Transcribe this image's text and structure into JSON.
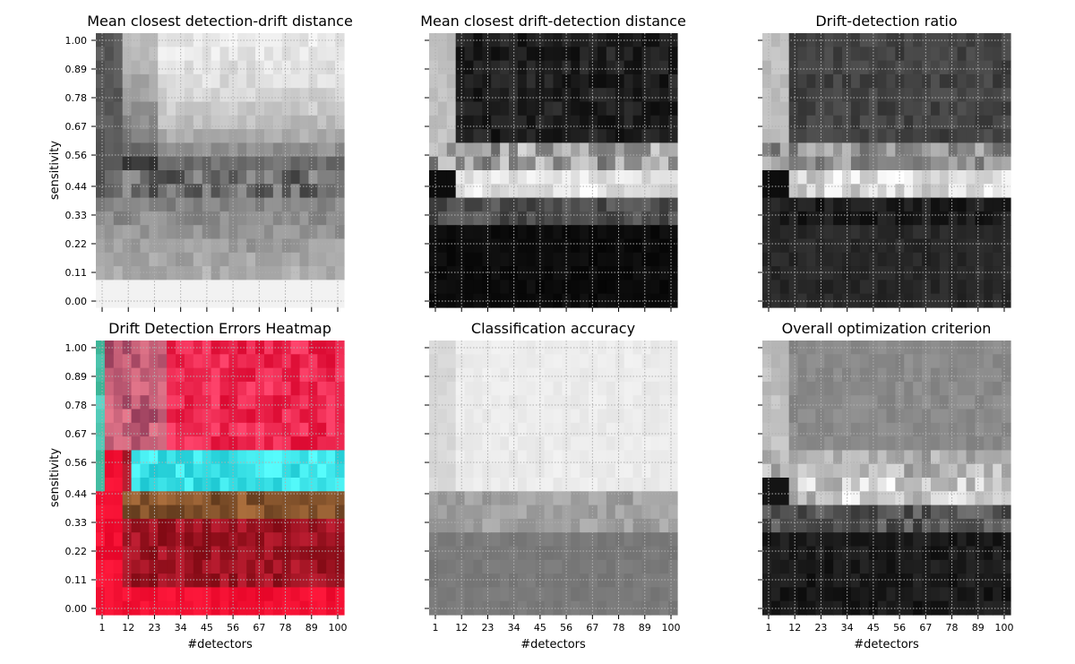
{
  "chart_data": {
    "type": "heatmap",
    "layout": "2 rows x 3 columns",
    "x_axis": {
      "label": "#detectors",
      "range": [
        1,
        100
      ],
      "tick_labels": [
        "1",
        "12",
        "23",
        "34",
        "45",
        "56",
        "67",
        "78",
        "89",
        "100"
      ]
    },
    "y_axis": {
      "label": "sensitivity",
      "range": [
        0.0,
        1.0
      ],
      "tick_labels": [
        "0.00",
        "0.11",
        "0.22",
        "0.33",
        "0.44",
        "0.56",
        "0.67",
        "0.78",
        "0.89",
        "1.00"
      ]
    },
    "grid": true,
    "panels": [
      {
        "title": "Mean closest detection-drift distance",
        "colormap": "grayscale"
      },
      {
        "title": "Mean closest drift-detection distance",
        "colormap": "grayscale"
      },
      {
        "title": "Drift-detection ratio",
        "colormap": "grayscale"
      },
      {
        "title": "Drift Detection Errors Heatmap",
        "colormap": "rgb-composite"
      },
      {
        "title": "Classification accuracy",
        "colormap": "grayscale"
      },
      {
        "title": "Overall optimization criterion",
        "colormap": "grayscale"
      }
    ]
  }
}
